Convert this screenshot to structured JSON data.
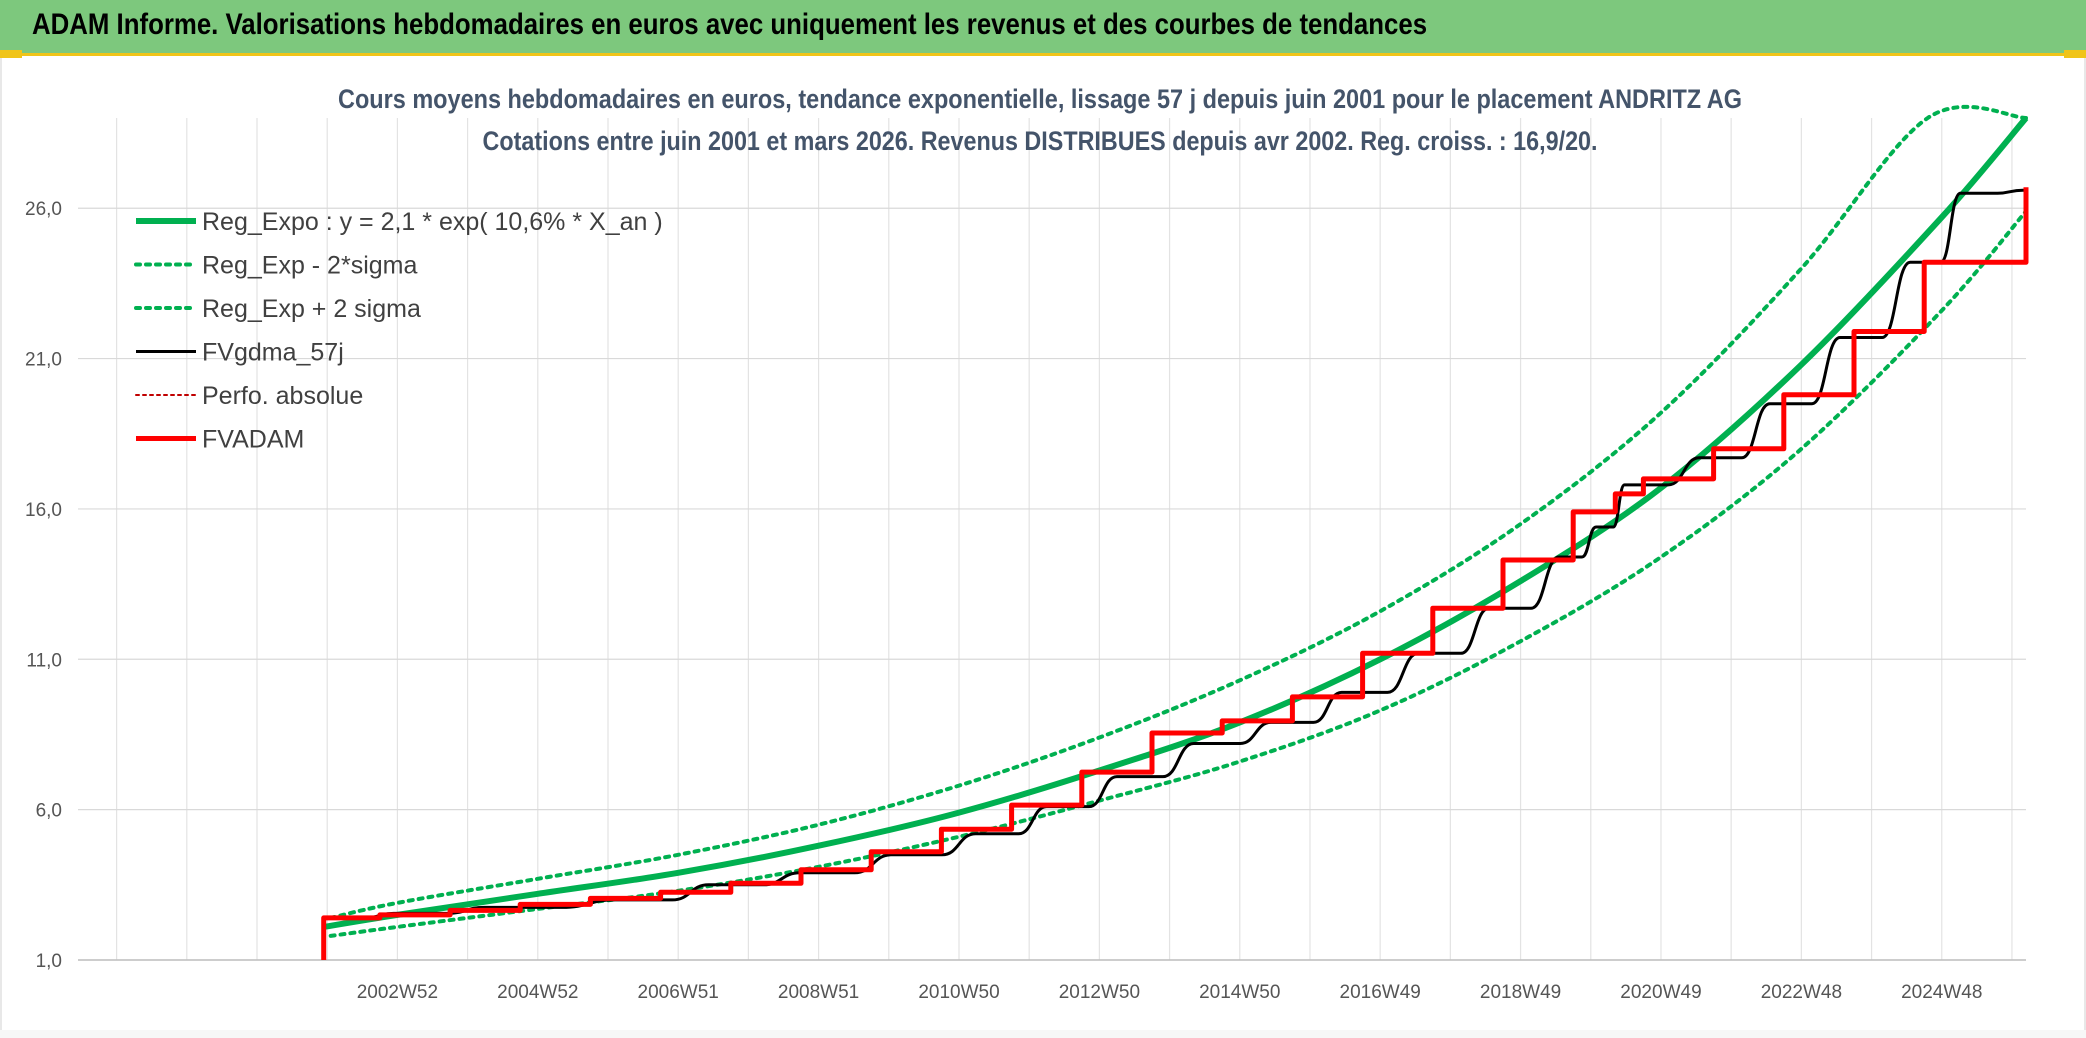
{
  "header": {
    "title": "ADAM Informe. Valorisations hebdomadaires en euros avec uniquement les revenus et des courbes de tendances"
  },
  "chart_data": {
    "type": "line",
    "title": "Cours moyens hebdomadaires en euros, tendance exponentielle, lissage 57 j depuis juin 2001 pour le placement ANDRITZ AG",
    "subtitle": "Cotations entre juin 2001 et mars 2026. Revenus DISTRIBUES depuis avr 2002. Reg. croiss. : 16,9/20.",
    "xlabel": "",
    "ylabel": "",
    "x_range": [
      1998.45,
      2026.2
    ],
    "ylim": [
      1.0,
      29.0
    ],
    "y_ticks": [
      "1,0",
      "6,0",
      "11,0",
      "16,0",
      "21,0",
      "26,0"
    ],
    "x_ticks": [
      {
        "label": "2002W52",
        "x": 2003.0
      },
      {
        "label": "2004W52",
        "x": 2005.0
      },
      {
        "label": "2006W51",
        "x": 2007.0
      },
      {
        "label": "2008W51",
        "x": 2009.0
      },
      {
        "label": "2010W50",
        "x": 2011.0
      },
      {
        "label": "2012W50",
        "x": 2013.0
      },
      {
        "label": "2014W50",
        "x": 2015.0
      },
      {
        "label": "2016W49",
        "x": 2017.0
      },
      {
        "label": "2018W49",
        "x": 2019.0
      },
      {
        "label": "2020W49",
        "x": 2021.0
      },
      {
        "label": "2022W48",
        "x": 2023.0
      },
      {
        "label": "2024W48",
        "x": 2025.0
      }
    ],
    "grid": true,
    "legend_position": "top-left",
    "series": [
      {
        "name": "Reg_Expo : y = 2,1 * exp( 10,6% *  X_an )",
        "color": "#00b050",
        "style": "solid-thick",
        "x": [
          2001.95,
          2003.0,
          2005.0,
          2007.0,
          2009.0,
          2011.0,
          2013.0,
          2015.0,
          2017.0,
          2019.0,
          2021.0,
          2023.0,
          2025.0,
          2026.2
        ],
        "values": [
          2.1,
          2.5,
          3.2,
          3.9,
          4.8,
          5.9,
          7.3,
          8.9,
          11.0,
          13.6,
          16.7,
          20.8,
          25.7,
          29.0
        ]
      },
      {
        "name": "Reg_Exp - 2*sigma",
        "color": "#00b050",
        "style": "dotted",
        "x": [
          2002.05,
          2003.0,
          2005.0,
          2007.0,
          2009.0,
          2011.0,
          2013.0,
          2015.0,
          2017.0,
          2019.0,
          2021.0,
          2023.0,
          2025.0,
          2026.2
        ],
        "values": [
          1.8,
          2.1,
          2.7,
          3.3,
          4.1,
          5.1,
          6.3,
          7.6,
          9.3,
          11.6,
          14.4,
          18.0,
          22.6,
          25.9
        ]
      },
      {
        "name": "Reg_Exp + 2 sigma",
        "color": "#00b050",
        "style": "dotted",
        "x": [
          2002.05,
          2003.0,
          2005.0,
          2007.0,
          2009.0,
          2011.0,
          2013.0,
          2015.0,
          2017.0,
          2019.0,
          2021.0,
          2023.0,
          2024.8,
          2026.2
        ],
        "values": [
          2.4,
          2.9,
          3.7,
          4.5,
          5.5,
          6.8,
          8.4,
          10.3,
          12.6,
          15.5,
          19.2,
          24.0,
          29.0,
          29.0
        ]
      },
      {
        "name": "FVgdma_57j",
        "color": "#000000",
        "style": "solid",
        "x": [
          2001.95,
          2003.0,
          2004.3,
          2006.2,
          2007.5,
          2008.8,
          2010.1,
          2011.3,
          2012.3,
          2013.3,
          2014.4,
          2015.5,
          2016.5,
          2017.6,
          2018.6,
          2019.6,
          2020.1,
          2020.5,
          2021.6,
          2022.6,
          2023.6,
          2024.6,
          2025.3,
          2026.2
        ],
        "values": [
          2.4,
          2.55,
          2.75,
          3.0,
          3.5,
          3.9,
          4.5,
          5.2,
          6.1,
          7.1,
          8.2,
          8.9,
          9.9,
          11.2,
          12.7,
          14.4,
          15.4,
          16.8,
          17.7,
          19.5,
          21.7,
          24.2,
          26.5,
          26.6
        ]
      },
      {
        "name": "Perfo. absolue",
        "color": "#c00000",
        "style": "dotted-thin",
        "x": [],
        "values": []
      },
      {
        "name": "FVADAM",
        "color": "#ff0000",
        "style": "step-thick",
        "x": [
          2001.95,
          2001.95,
          2002.75,
          2003.75,
          2004.75,
          2005.75,
          2006.75,
          2007.75,
          2008.75,
          2009.75,
          2010.75,
          2011.75,
          2012.75,
          2013.75,
          2014.75,
          2015.75,
          2016.75,
          2017.75,
          2018.75,
          2019.75,
          2020.35,
          2020.75,
          2021.75,
          2022.75,
          2023.75,
          2024.75,
          2026.2
        ],
        "values": [
          1.0,
          2.4,
          2.5,
          2.65,
          2.85,
          3.05,
          3.25,
          3.55,
          4.0,
          4.6,
          5.35,
          6.15,
          7.25,
          8.55,
          8.95,
          9.75,
          11.2,
          12.7,
          14.3,
          15.9,
          16.5,
          17.0,
          18.0,
          19.8,
          21.9,
          24.2,
          26.7
        ]
      }
    ]
  }
}
